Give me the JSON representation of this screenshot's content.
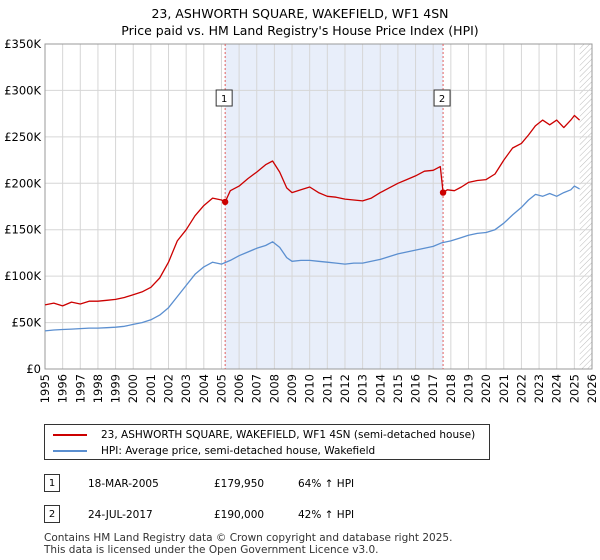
{
  "chart_data": {
    "type": "line",
    "title": "23, ASHWORTH SQUARE, WAKEFIELD, WF1 4SN",
    "subtitle": "Price paid vs. HM Land Registry's House Price Index (HPI)",
    "xlabel": "",
    "ylabel": "",
    "xlim": [
      1995,
      2026
    ],
    "ylim": [
      0,
      350000
    ],
    "y_ticks": [
      {
        "value": 0,
        "label": "£0"
      },
      {
        "value": 50000,
        "label": "£50K"
      },
      {
        "value": 100000,
        "label": "£100K"
      },
      {
        "value": 150000,
        "label": "£150K"
      },
      {
        "value": 200000,
        "label": "£200K"
      },
      {
        "value": 250000,
        "label": "£250K"
      },
      {
        "value": 300000,
        "label": "£300K"
      },
      {
        "value": 350000,
        "label": "£350K"
      }
    ],
    "x_ticks": [
      "1995",
      "1996",
      "1997",
      "1998",
      "1999",
      "2000",
      "2001",
      "2002",
      "2003",
      "2004",
      "2005",
      "2006",
      "2007",
      "2008",
      "2009",
      "2010",
      "2011",
      "2012",
      "2013",
      "2014",
      "2015",
      "2016",
      "2017",
      "2018",
      "2019",
      "2020",
      "2021",
      "2022",
      "2023",
      "2024",
      "2025",
      "2026"
    ],
    "grid": true,
    "shaded_period": [
      2005.21,
      2017.56
    ],
    "series": [
      {
        "name": "23, ASHWORTH SQUARE, WAKEFIELD, WF1 4SN (semi-detached house)",
        "color": "#cc0000",
        "x": [
          1995.0,
          1995.5,
          1996.0,
          1996.5,
          1997.0,
          1997.5,
          1998.0,
          1998.5,
          1999.0,
          1999.5,
          2000.0,
          2000.5,
          2001.0,
          2001.5,
          2002.0,
          2002.5,
          2003.0,
          2003.5,
          2004.0,
          2004.5,
          2005.0,
          2005.21,
          2005.5,
          2006.0,
          2006.5,
          2007.0,
          2007.5,
          2007.9,
          2008.3,
          2008.7,
          2009.0,
          2009.5,
          2010.0,
          2010.5,
          2011.0,
          2011.5,
          2012.0,
          2012.5,
          2013.0,
          2013.5,
          2014.0,
          2014.5,
          2015.0,
          2015.5,
          2016.0,
          2016.5,
          2017.0,
          2017.4,
          2017.56,
          2017.8,
          2018.2,
          2018.6,
          2019.0,
          2019.5,
          2020.0,
          2020.5,
          2021.0,
          2021.5,
          2022.0,
          2022.4,
          2022.8,
          2023.2,
          2023.6,
          2024.0,
          2024.4,
          2024.8,
          2025.0,
          2025.3
        ],
        "y": [
          69000,
          71000,
          68000,
          72000,
          70000,
          73000,
          73000,
          74000,
          75000,
          77000,
          80000,
          83000,
          88000,
          98000,
          115000,
          138000,
          150000,
          165000,
          176000,
          184000,
          182000,
          179950,
          192000,
          197000,
          205000,
          212000,
          220000,
          224000,
          212000,
          195000,
          190000,
          193000,
          196000,
          190000,
          186000,
          185000,
          183000,
          182000,
          181000,
          184000,
          190000,
          195000,
          200000,
          204000,
          208000,
          213000,
          214000,
          218000,
          190000,
          193000,
          192000,
          196000,
          201000,
          203000,
          204000,
          210000,
          225000,
          238000,
          243000,
          252000,
          262000,
          268000,
          263000,
          268000,
          260000,
          268000,
          273000,
          268000
        ]
      },
      {
        "name": "HPI: Average price, semi-detached house, Wakefield",
        "color": "#5b8fd0",
        "x": [
          1995.0,
          1995.5,
          1996.0,
          1996.5,
          1997.0,
          1997.5,
          1998.0,
          1998.5,
          1999.0,
          1999.5,
          2000.0,
          2000.5,
          2001.0,
          2001.5,
          2002.0,
          2002.5,
          2003.0,
          2003.5,
          2004.0,
          2004.5,
          2005.0,
          2005.5,
          2006.0,
          2006.5,
          2007.0,
          2007.5,
          2007.9,
          2008.3,
          2008.7,
          2009.0,
          2009.5,
          2010.0,
          2010.5,
          2011.0,
          2011.5,
          2012.0,
          2012.5,
          2013.0,
          2013.5,
          2014.0,
          2014.5,
          2015.0,
          2015.5,
          2016.0,
          2016.5,
          2017.0,
          2017.5,
          2018.0,
          2018.5,
          2019.0,
          2019.5,
          2020.0,
          2020.5,
          2021.0,
          2021.5,
          2022.0,
          2022.4,
          2022.8,
          2023.2,
          2023.6,
          2024.0,
          2024.4,
          2024.8,
          2025.0,
          2025.3
        ],
        "y": [
          41000,
          42000,
          42500,
          43000,
          43500,
          44000,
          44000,
          44500,
          45000,
          46000,
          48000,
          50000,
          53000,
          58000,
          66000,
          78000,
          90000,
          102000,
          110000,
          115000,
          113000,
          117000,
          122000,
          126000,
          130000,
          133000,
          137000,
          131000,
          120000,
          116000,
          117000,
          117000,
          116000,
          115000,
          114000,
          113000,
          114000,
          114000,
          116000,
          118000,
          121000,
          124000,
          126000,
          128000,
          130000,
          132000,
          136000,
          138000,
          141000,
          144000,
          146000,
          147000,
          150000,
          157000,
          166000,
          174000,
          182000,
          188000,
          186000,
          189000,
          186000,
          190000,
          193000,
          197000,
          194000
        ]
      }
    ],
    "annotations": [
      {
        "label": "1",
        "x": 2005.21,
        "y": 179950
      },
      {
        "label": "2",
        "x": 2017.56,
        "y": 190000
      }
    ]
  },
  "legend": {
    "red_label": "23, ASHWORTH SQUARE, WAKEFIELD, WF1 4SN (semi-detached house)",
    "blue_label": "HPI: Average price, semi-detached house, Wakefield"
  },
  "sales": [
    {
      "num": "1",
      "date": "18-MAR-2005",
      "price": "£179,950",
      "hpi": "64% ↑ HPI"
    },
    {
      "num": "2",
      "date": "24-JUL-2017",
      "price": "£190,000",
      "hpi": "42% ↑ HPI"
    }
  ],
  "footer": {
    "line1": "Contains HM Land Registry data © Crown copyright and database right 2025.",
    "line2": "This data is licensed under the Open Government Licence v3.0."
  }
}
